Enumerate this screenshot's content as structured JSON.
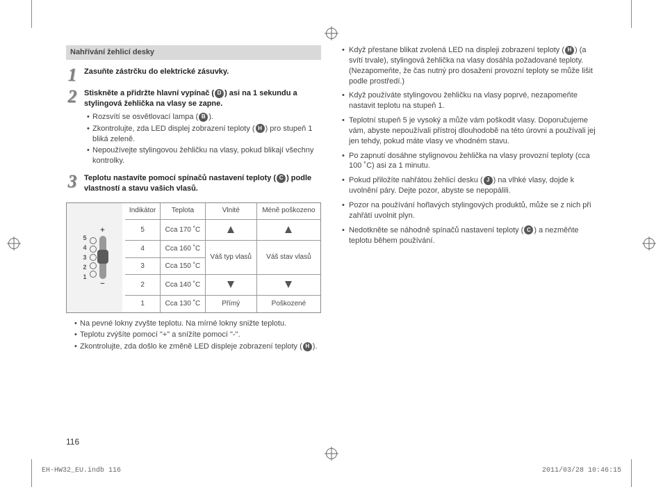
{
  "section_header": "Nahřívání žehlicí desky",
  "steps": [
    {
      "num": "1",
      "title": "Zasuňte zástrčku do elektrické zásuvky.",
      "bullets": []
    },
    {
      "num": "2",
      "title_a": "Stiskněte a přidržte hlavní vypínač (",
      "title_b": ") asi na 1 sekundu a stylingová žehlička na vlasy se zapne.",
      "bullets": [
        {
          "pre": "Rozsvítí se osvětlovací lampa (",
          "post": ").",
          "letter": "B"
        },
        {
          "pre": "Zkontrolujte, zda LED displej zobrazení teploty (",
          "post": ") pro stupeň 1 bliká zeleně.",
          "letter": "H"
        },
        {
          "text": "Nepoužívejte stylingovou žehličku na vlasy, pokud blikají všechny kontrolky."
        }
      ],
      "letter": "D"
    },
    {
      "num": "3",
      "title_a": "Teplotu nastavíte pomocí spínačů nastavení teploty (",
      "title_b": ") podle vlastností a stavu vašich vlasů.",
      "letter": "C"
    }
  ],
  "table": {
    "headers": [
      "Indikátor",
      "Teplota",
      "Vlnité",
      "Méně poškozeno"
    ],
    "rows": [
      [
        "5",
        "Cca 170 ˚C"
      ],
      [
        "4",
        "Cca 160 ˚C"
      ],
      [
        "3",
        "Cca 150 ˚C"
      ],
      [
        "2",
        "Cca 140 ˚C"
      ],
      [
        "1",
        "Cca 130 ˚C"
      ]
    ],
    "col3_mid": "Váš typ vlasů",
    "col4_mid": "Váš stav vlasů",
    "col3_bot": "Přímý",
    "col4_bot": "Poškozené",
    "panel_nums": [
      "5",
      "4",
      "3",
      "2",
      "1"
    ]
  },
  "notes_left": [
    "Na pevné lokny zvyšte teplotu. Na mírné lokny snižte teplotu.",
    "Teplotu zvýšíte pomocí \"+\" a snížíte pomocí \"-\".",
    {
      "pre": "Zkontrolujte, zda došlo ke změně LED displeje zobrazení teploty (",
      "post": ").",
      "letter": "H"
    }
  ],
  "right_items": [
    {
      "pre": "Když přestane blikat zvolená LED na displeji zobrazení teploty (",
      "letter": "H",
      "mid": ") (a svítí trvale), stylingová žehlička na vlasy dosáhla požadované teploty.",
      "extra": "(Nezapomeňte, že čas nutný pro dosažení provozní teploty se může lišit podle prostředí.)"
    },
    {
      "text": "Když používáte stylingovou žehličku na vlasy poprvé, nezapomeňte nastavit teplotu na stupeň 1."
    },
    {
      "text": "Teplotní stupeň 5 je vysoký a může vám poškodit vlasy. Doporučujeme vám, abyste nepoužívali přístroj dlouhodobě na této úrovni a používali jej jen tehdy, pokud máte vlasy ve vhodném stavu."
    },
    {
      "text": "Po zapnutí dosáhne stylignovou žehlička na vlasy provozní teploty (cca 100 ˚C) asi za 1 minutu."
    },
    {
      "pre": "Pokud přiložíte nahřátou žehlicí desku (",
      "letter": "J",
      "mid": ") na vlhké vlasy, dojde k uvolnění páry. Dejte pozor, abyste se nepopálili."
    },
    {
      "text": "Pozor na používání hořlavých stylingových produktů, může se z nich při zahřátí uvolnit plyn."
    },
    {
      "pre": "Nedotkněte se náhodně spínačů nastavení teploty (",
      "letter": "C",
      "mid": ") a nezměňte teplotu během používání."
    }
  ],
  "page_num": "116",
  "footer_left": "EH-HW32_EU.indb   116",
  "footer_right": "2011/03/28   10:46:15"
}
